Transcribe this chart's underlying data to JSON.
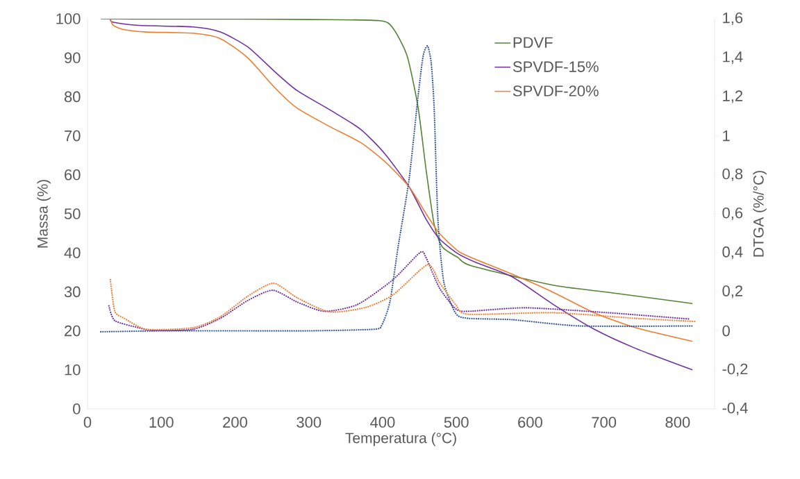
{
  "chart_data": {
    "type": "line",
    "xlabel": "Temperatura (°C)",
    "ylabel": "Massa (%)",
    "y2label": "DTGA (%/°C)",
    "xlim": [
      0,
      850
    ],
    "xticks": [
      0,
      100,
      200,
      300,
      400,
      500,
      600,
      700,
      800
    ],
    "ylim": [
      0,
      100
    ],
    "yticks": [
      0,
      10,
      20,
      30,
      40,
      50,
      60,
      70,
      80,
      90,
      100
    ],
    "y2lim": [
      -0.4,
      1.6
    ],
    "y2ticks": [
      {
        "value": -0.4,
        "label": "-0,4"
      },
      {
        "value": -0.2,
        "label": "-0,2"
      },
      0,
      {
        "value": 0.2,
        "label": "0,2"
      },
      {
        "value": 0.4,
        "label": "0,4"
      },
      {
        "value": 0.6,
        "label": "0,6"
      },
      {
        "value": 0.8,
        "label": "0,8"
      },
      1,
      {
        "value": 1.2,
        "label": "1,2"
      },
      {
        "value": 1.4,
        "label": "1,4"
      },
      {
        "value": 1.6,
        "label": "1,6"
      }
    ],
    "grid": false,
    "legend": "top right",
    "marker": "none",
    "series": [
      {
        "name": "PDVF",
        "color": "#548235",
        "line_style": "solid",
        "x": [
          18,
          100,
          200,
          300,
          396,
          414,
          433,
          448,
          459,
          470,
          481,
          502,
          520,
          631,
          705,
          820
        ],
        "values": [
          100,
          99.9,
          99.9,
          99.8,
          99.5,
          97.6,
          90.6,
          77.4,
          61.2,
          47.2,
          41.5,
          38.8,
          36.7,
          31.7,
          29.9,
          27.0
        ]
      },
      {
        "name": "SPVDF-15%",
        "color": "#7030a0",
        "line_style": "solid",
        "x": [
          31,
          35,
          69,
          143,
          180,
          217,
          254,
          284,
          328,
          370,
          403,
          436,
          459,
          477,
          502,
          527,
          576,
          631,
          686,
          743,
          820
        ],
        "values": [
          99.8,
          99.1,
          98.3,
          97.9,
          96.6,
          92.8,
          86.4,
          81.6,
          76.7,
          71.7,
          65.4,
          56.9,
          48.6,
          43.6,
          39.8,
          37.5,
          33.8,
          26.8,
          20.5,
          15.5,
          10.0
        ]
      },
      {
        "name": "SPVDF-20%",
        "color": "#ed7d31",
        "line_style": "solid",
        "x": [
          31,
          35,
          50,
          80,
          143,
          180,
          217,
          254,
          284,
          328,
          370,
          403,
          436,
          459,
          477,
          502,
          520,
          576,
          631,
          686,
          743,
          820
        ],
        "values": [
          100,
          98.3,
          97.2,
          96.6,
          96.3,
          94.9,
          90.0,
          82.3,
          77.1,
          72.4,
          68.3,
          63.4,
          56.9,
          50.0,
          45.0,
          40.5,
          38.8,
          34.5,
          29.9,
          24.7,
          20.8,
          17.3
        ]
      },
      {
        "color": "#2f5597",
        "axis": "y2",
        "line_style": "dotted",
        "x": [
          18,
          100,
          200,
          300,
          388,
          399,
          410,
          421,
          436,
          448,
          455,
          461,
          466,
          470,
          475,
          483,
          499,
          516,
          576,
          668,
          820
        ],
        "values": [
          -0.005,
          0,
          0,
          0,
          0.008,
          0.03,
          0.15,
          0.43,
          0.78,
          1.2,
          1.41,
          1.46,
          1.37,
          1.13,
          0.57,
          0.25,
          0.09,
          0.064,
          0.057,
          0.025,
          0.025
        ]
      },
      {
        "color": "#7030a0",
        "axis": "y2",
        "line_style": "dotted",
        "x": [
          29,
          37,
          69,
          88,
          143,
          180,
          217,
          251,
          284,
          321,
          366,
          414,
          451,
          459,
          477,
          499,
          516,
          594,
          705,
          817
        ],
        "values": [
          0.128,
          0.052,
          0.016,
          0.002,
          0.008,
          0.064,
          0.155,
          0.208,
          0.148,
          0.1,
          0.135,
          0.262,
          0.402,
          0.374,
          0.22,
          0.113,
          0.1,
          0.118,
          0.093,
          0.06
        ]
      },
      {
        "color": "#ed7d31",
        "axis": "y2",
        "line_style": "dotted",
        "x": [
          31,
          37,
          50,
          80,
          143,
          180,
          217,
          252,
          284,
          328,
          377,
          414,
          461,
          477,
          499,
          516,
          631,
          743,
          824
        ],
        "values": [
          0.262,
          0.1,
          0.064,
          0.008,
          0.016,
          0.072,
          0.177,
          0.244,
          0.17,
          0.097,
          0.12,
          0.184,
          0.339,
          0.248,
          0.135,
          0.085,
          0.093,
          0.064,
          0.048
        ]
      }
    ]
  }
}
